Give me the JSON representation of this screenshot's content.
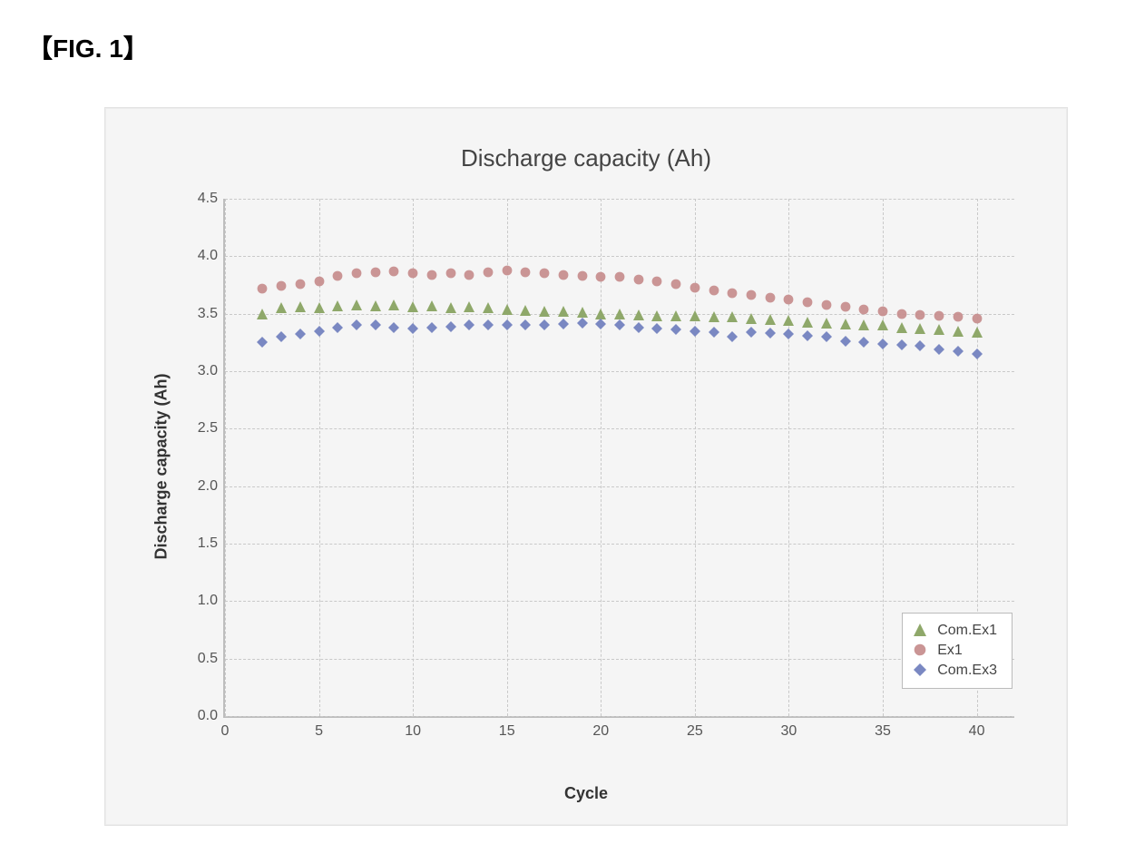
{
  "figure_label": "【FIG. 1】",
  "chart": {
    "type": "scatter",
    "title": "Discharge capacity (Ah)",
    "title_fontsize": 26,
    "xlabel": "Cycle",
    "ylabel": "Discharge capacity (Ah)",
    "label_fontsize": 18,
    "tick_fontsize": 16,
    "background_color": "#f5f5f5",
    "grid_color": "#c9c9c9",
    "axis_color": "#bdbdbd",
    "xlim": [
      0,
      42
    ],
    "ylim": [
      0.0,
      4.5
    ],
    "xtick_step": 5,
    "xtick_max": 40,
    "ytick_step": 0.5,
    "series": [
      {
        "name": "Com.Ex1",
        "marker_shape": "triangle",
        "marker_color": "#8fa86a",
        "marker_size": 12,
        "x": [
          2,
          3,
          4,
          5,
          6,
          7,
          8,
          9,
          10,
          11,
          12,
          13,
          14,
          15,
          16,
          17,
          18,
          19,
          20,
          21,
          22,
          23,
          24,
          25,
          26,
          27,
          28,
          29,
          30,
          31,
          32,
          33,
          34,
          35,
          36,
          37,
          38,
          39,
          40
        ],
        "y": [
          3.5,
          3.55,
          3.56,
          3.55,
          3.57,
          3.58,
          3.57,
          3.58,
          3.56,
          3.57,
          3.55,
          3.56,
          3.55,
          3.54,
          3.53,
          3.52,
          3.52,
          3.51,
          3.5,
          3.5,
          3.49,
          3.48,
          3.48,
          3.48,
          3.47,
          3.47,
          3.46,
          3.45,
          3.44,
          3.43,
          3.42,
          3.41,
          3.4,
          3.4,
          3.38,
          3.37,
          3.36,
          3.35,
          3.34
        ]
      },
      {
        "name": "Ex1",
        "marker_shape": "dot",
        "marker_color": "#c78f8f",
        "marker_size": 12,
        "x": [
          2,
          3,
          4,
          5,
          6,
          7,
          8,
          9,
          10,
          11,
          12,
          13,
          14,
          15,
          16,
          17,
          18,
          19,
          20,
          21,
          22,
          23,
          24,
          25,
          26,
          27,
          28,
          29,
          30,
          31,
          32,
          33,
          34,
          35,
          36,
          37,
          38,
          39,
          40
        ],
        "y": [
          3.72,
          3.74,
          3.76,
          3.78,
          3.83,
          3.85,
          3.86,
          3.87,
          3.85,
          3.84,
          3.85,
          3.84,
          3.86,
          3.88,
          3.86,
          3.85,
          3.84,
          3.83,
          3.82,
          3.82,
          3.8,
          3.78,
          3.76,
          3.73,
          3.7,
          3.68,
          3.66,
          3.64,
          3.62,
          3.6,
          3.58,
          3.56,
          3.54,
          3.52,
          3.5,
          3.49,
          3.48,
          3.47,
          3.46
        ]
      },
      {
        "name": "Com.Ex3",
        "marker_shape": "diamond",
        "marker_color": "#7a88c2",
        "marker_size": 12,
        "x": [
          2,
          3,
          4,
          5,
          6,
          7,
          8,
          9,
          10,
          11,
          12,
          13,
          14,
          15,
          16,
          17,
          18,
          19,
          20,
          21,
          22,
          23,
          24,
          25,
          26,
          27,
          28,
          29,
          30,
          31,
          32,
          33,
          34,
          35,
          36,
          37,
          38,
          39,
          40
        ],
        "y": [
          3.25,
          3.3,
          3.32,
          3.35,
          3.38,
          3.4,
          3.4,
          3.38,
          3.37,
          3.38,
          3.39,
          3.4,
          3.4,
          3.4,
          3.4,
          3.4,
          3.41,
          3.42,
          3.41,
          3.4,
          3.38,
          3.37,
          3.36,
          3.35,
          3.34,
          3.3,
          3.34,
          3.33,
          3.32,
          3.31,
          3.3,
          3.26,
          3.25,
          3.24,
          3.23,
          3.22,
          3.19,
          3.17,
          3.15
        ]
      }
    ],
    "legend": {
      "position": "inside-bottom-right",
      "background_color": "#ffffff",
      "border_color": "#bbbbbb",
      "items": [
        "Com.Ex1",
        "Ex1",
        "Com.Ex3"
      ]
    }
  }
}
